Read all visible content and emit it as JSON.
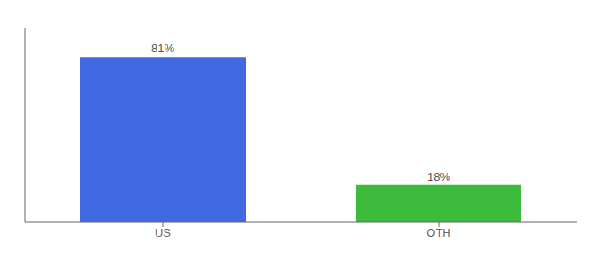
{
  "chart_data": {
    "type": "bar",
    "categories": [
      "US",
      "OTH"
    ],
    "values": [
      81,
      18
    ],
    "value_labels": [
      "81%",
      "18%"
    ],
    "colors": [
      "#4169e1",
      "#3dbb3d"
    ],
    "ylim": [
      0,
      95
    ],
    "data_labels": true,
    "grid": false,
    "tick_labels": "x"
  }
}
